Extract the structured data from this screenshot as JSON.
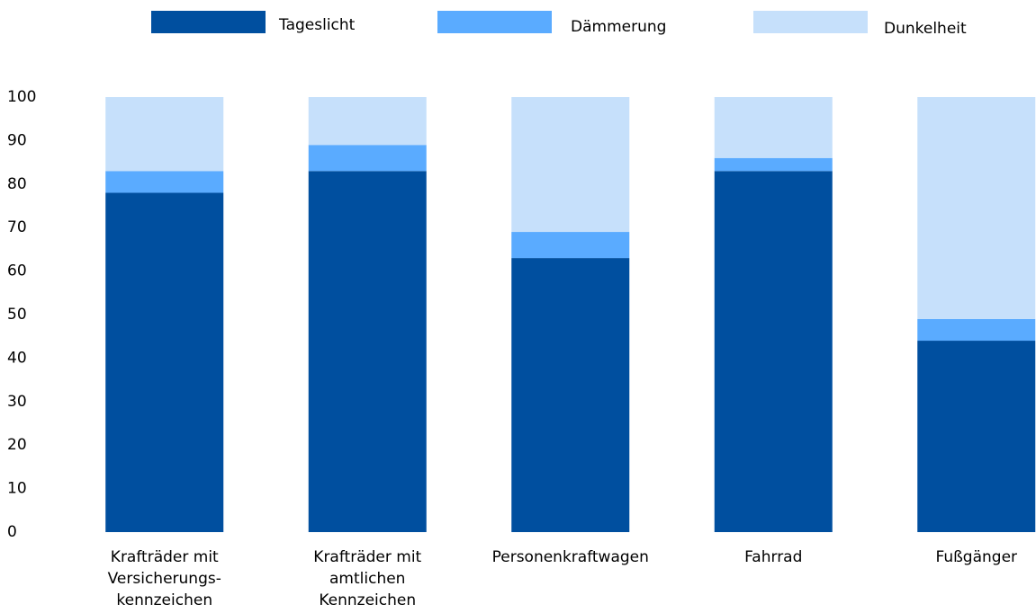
{
  "chart_data": {
    "type": "stacked_bar",
    "categories": [
      "Krafträder mit\nVersicherungs-\nkennzeichen",
      "Krafträder mit\namtlichen\nKennzeichen",
      "Personenkraftwagen",
      "Fahrrad",
      "Fußgänger"
    ],
    "series": [
      {
        "name": "Tageslicht",
        "color": "#004f9f",
        "values": [
          78,
          83,
          63,
          83,
          44
        ]
      },
      {
        "name": "Dämmerung",
        "color": "#5aabff",
        "values": [
          5,
          6,
          6,
          3,
          5
        ]
      },
      {
        "name": "Dunkelheit",
        "color": "#c6e0fb",
        "values": [
          17,
          11,
          31,
          14,
          51
        ]
      }
    ],
    "ylim": [
      0,
      100
    ],
    "yticks": [
      0,
      10,
      20,
      30,
      40,
      50,
      60,
      70,
      80,
      90,
      100
    ],
    "grid": false
  }
}
